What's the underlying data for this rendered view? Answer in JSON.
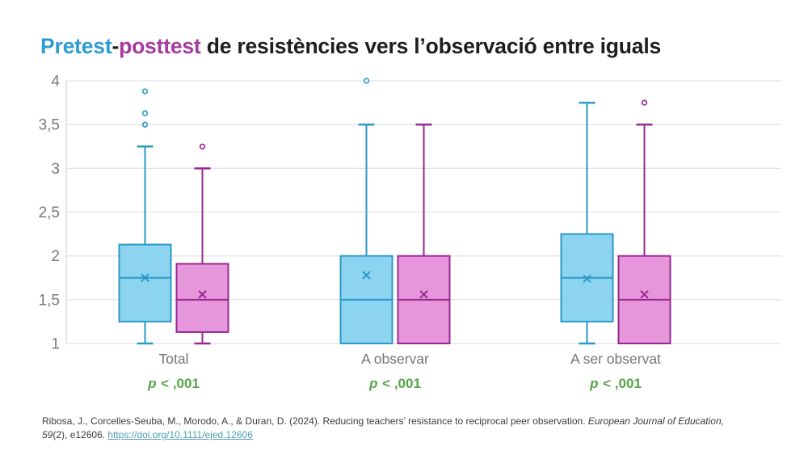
{
  "title": {
    "pretest": "Pretest",
    "dash": "-",
    "posttest": "posttest",
    "rest": " de resistències vers l’observació entre iguals"
  },
  "chart_data": {
    "type": "boxplot",
    "ylim": [
      1,
      4
    ],
    "grid": true,
    "y_axis": {
      "ticks": [
        {
          "label": "4",
          "value": 4
        },
        {
          "label": "3,5",
          "value": 3.5
        },
        {
          "label": "3",
          "value": 3
        },
        {
          "label": "2,5",
          "value": 2.5
        },
        {
          "label": "2",
          "value": 2
        },
        {
          "label": "1,5",
          "value": 1.5
        },
        {
          "label": "1",
          "value": 1
        }
      ]
    },
    "series": [
      {
        "name": "Pretest",
        "key": "pretest",
        "fill": "#8dd4f1",
        "stroke": "#2a9ac6"
      },
      {
        "name": "Posttest",
        "key": "posttest",
        "fill": "#e697dc",
        "stroke": "#98288f"
      }
    ],
    "groups": [
      {
        "label": "Total",
        "p_var": "p",
        "p_rest": " < ,001",
        "pretest": {
          "whisker_low": 1.0,
          "q1": 1.25,
          "median": 1.75,
          "mean": 1.75,
          "q3": 2.13,
          "whisker_high": 3.25,
          "outliers": [
            3.5,
            3.63,
            3.88
          ]
        },
        "posttest": {
          "whisker_low": 1.0,
          "q1": 1.13,
          "median": 1.5,
          "mean": 1.56,
          "q3": 1.91,
          "whisker_high": 3.0,
          "outliers": [
            3.25
          ]
        }
      },
      {
        "label": "A observar",
        "p_var": "p",
        "p_rest": " < ,001",
        "pretest": {
          "whisker_low": 1.0,
          "q1": 1.0,
          "median": 1.5,
          "mean": 1.78,
          "q3": 2.0,
          "whisker_high": 3.5,
          "outliers": [
            4.0
          ]
        },
        "posttest": {
          "whisker_low": 1.0,
          "q1": 1.0,
          "median": 1.5,
          "mean": 1.56,
          "q3": 2.0,
          "whisker_high": 3.5,
          "outliers": []
        }
      },
      {
        "label": "A ser observat",
        "p_var": "p",
        "p_rest": " < ,001",
        "pretest": {
          "whisker_low": 1.0,
          "q1": 1.25,
          "median": 1.75,
          "mean": 1.74,
          "q3": 2.25,
          "whisker_high": 3.75,
          "outliers": []
        },
        "posttest": {
          "whisker_low": 1.0,
          "q1": 1.0,
          "median": 1.5,
          "mean": 1.56,
          "q3": 2.0,
          "whisker_high": 3.5,
          "outliers": [
            3.75
          ]
        }
      }
    ],
    "colors": {
      "grid": "#e4e4e4",
      "axis": "#d9d9d9",
      "tick_text": "#7a7a7a"
    }
  },
  "citation": {
    "line1_text": "Ribosa, J., Corcelles-Seuba, M., Morodo, A., & Duran, D. (2024). Reducing teachers’ resistance to reciprocal peer observation. ",
    "line1_italic": "European Journal of Education,",
    "line2_italic": "59",
    "line2_text": "(2), e12606. ",
    "link_text": "https://doi.org/10.1111/ejed.12606"
  }
}
